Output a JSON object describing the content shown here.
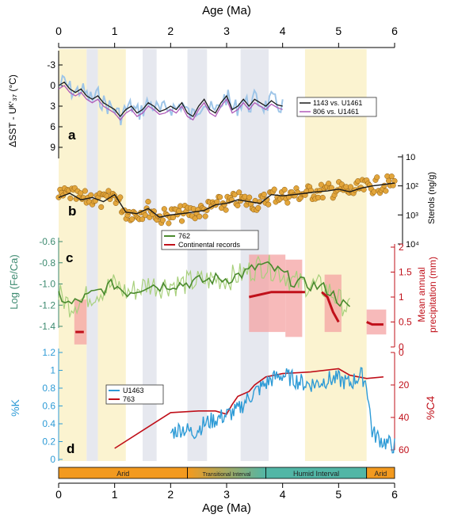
{
  "figure": {
    "top_axis_label": "Age (Ma)",
    "bottom_axis_label": "Age (Ma)",
    "age_ticks": [
      "0",
      "1",
      "2",
      "3",
      "4",
      "5",
      "6"
    ],
    "shading": {
      "yellow": [
        [
          0,
          0.5
        ],
        [
          0.7,
          1.2
        ],
        [
          4.4,
          5.5
        ]
      ],
      "gray": [
        [
          0.5,
          0.7
        ],
        [
          1.5,
          1.75
        ],
        [
          2.3,
          2.65
        ],
        [
          3.25,
          3.75
        ]
      ]
    },
    "colors": {
      "yellow_band": "#fbf3d0",
      "gray_band": "#e6e8ef",
      "arid": "#f39a1f",
      "humid": "#52b6a6",
      "green_dark": "#4a8a2e",
      "green_light": "#a8d07c",
      "red": "#c0101a",
      "pink": "#f4a3a3",
      "blue": "#2e9bd6",
      "orange_dot": "#e3a63b"
    }
  },
  "panel_a": {
    "letter": "a",
    "ylabel": "ΔSST - Uᴷ'₃₇ (°C)",
    "yticks": [
      "-3",
      "0",
      "3",
      "6",
      "9"
    ],
    "legend": [
      "1143 vs. U1461",
      "806 vs. U1461"
    ]
  },
  "panel_b": {
    "letter": "b",
    "ylabel": "Sterols (ng/g)",
    "yticks": [
      "10",
      "10²",
      "10³",
      "10⁴"
    ]
  },
  "panel_c": {
    "letter": "c",
    "ylabel_left": "Log (Fe/Ca)",
    "ylabel_right_1": "Mean annual",
    "ylabel_right_2": "precipitation (mm)",
    "yticks_left": [
      "-0.6",
      "-0.8",
      "-1.0",
      "-1.2",
      "-1.4"
    ],
    "yticks_right": [
      "2",
      "1.5",
      "1",
      "0.5",
      "0"
    ],
    "legend": [
      "762",
      "Continental records"
    ]
  },
  "panel_d": {
    "letter": "d",
    "ylabel_left": "%K",
    "ylabel_right": "%C4",
    "yticks_left": [
      "1.2",
      "1",
      "0.8",
      "0.6",
      "0.4",
      "0.2",
      "0"
    ],
    "yticks_right": [
      "0",
      "20",
      "40",
      "60"
    ],
    "legend": [
      "U1463",
      "763"
    ]
  },
  "climate_bar": {
    "segments": [
      {
        "label": "Arid",
        "from": 0,
        "to": 2.3,
        "kind": "arid"
      },
      {
        "label": "Transitional Interval",
        "from": 2.3,
        "to": 3.7,
        "kind": "transitional"
      },
      {
        "label": "Humid Interval",
        "from": 3.7,
        "to": 5.5,
        "kind": "humid"
      },
      {
        "label": "Arid",
        "from": 5.5,
        "to": 6.0,
        "kind": "arid"
      }
    ]
  },
  "chart_data": {
    "type": "line",
    "x_unit": "Age (Ma)",
    "xlim": [
      0,
      6
    ],
    "series": [
      {
        "name": "1143 vs. U1461",
        "panel": "a",
        "color": "#1a1a1a",
        "x": [
          0,
          0.1,
          0.2,
          0.3,
          0.4,
          0.5,
          0.6,
          0.7,
          0.8,
          0.9,
          1.0,
          1.1,
          1.2,
          1.3,
          1.4,
          1.5,
          1.6,
          1.7,
          1.8,
          1.9,
          2.0,
          2.1,
          2.2,
          2.3,
          2.4,
          2.5,
          2.6,
          2.7,
          2.8,
          2.9,
          3.0,
          3.1,
          3.2,
          3.3,
          3.4,
          3.5,
          3.6,
          3.7,
          3.8,
          3.9,
          4.0
        ],
        "y": [
          0,
          -0.5,
          0.5,
          1.0,
          0.5,
          1.5,
          2.0,
          1.5,
          2.5,
          3.0,
          3.5,
          4.5,
          3.5,
          3.0,
          4.0,
          3.5,
          2.5,
          3.0,
          3.8,
          3.5,
          3.0,
          3.5,
          2.5,
          4.0,
          4.5,
          3.0,
          2.0,
          3.5,
          4.0,
          2.5,
          1.5,
          3.5,
          3.0,
          2.0,
          3.0,
          2.0,
          2.5,
          3.0,
          2.2,
          2.8,
          3.0
        ]
      },
      {
        "name": "806 vs. U1461",
        "panel": "a",
        "color": "#b05ab8",
        "x": [
          0,
          0.1,
          0.2,
          0.3,
          0.4,
          0.5,
          0.6,
          0.7,
          0.8,
          0.9,
          1.0,
          1.1,
          1.2,
          1.3,
          1.4,
          1.5,
          1.6,
          1.7,
          1.8,
          1.9,
          2.0,
          2.1,
          2.2,
          2.3,
          2.4,
          2.5,
          2.6,
          2.7,
          2.8,
          2.9,
          3.0,
          3.1,
          3.2,
          3.3,
          3.4,
          3.5,
          3.6,
          3.7,
          3.8,
          3.9,
          4.0
        ],
        "y": [
          0.5,
          0,
          1.0,
          1.5,
          1.0,
          2.0,
          2.5,
          2.0,
          3.0,
          3.5,
          4.0,
          5.0,
          4.0,
          3.5,
          4.5,
          4.0,
          3.0,
          3.5,
          4.2,
          4.0,
          3.5,
          4.0,
          3.0,
          4.5,
          5.0,
          3.5,
          2.5,
          4.0,
          4.5,
          3.0,
          2.0,
          4.0,
          3.5,
          2.5,
          3.5,
          2.5,
          3.0,
          3.5,
          2.7,
          3.2,
          3.5
        ]
      },
      {
        "name": "Sterols",
        "panel": "b",
        "y_unit": "ng/g",
        "color": "#1a1a1a",
        "x": [
          0,
          0.2,
          0.4,
          0.6,
          0.8,
          1.0,
          1.2,
          1.4,
          1.6,
          1.8,
          2.0,
          2.2,
          2.4,
          2.6,
          2.8,
          3.0,
          3.2,
          3.4,
          3.6,
          3.8,
          4.0,
          4.2,
          4.4,
          4.6,
          4.8,
          5.0,
          5.2,
          5.4,
          5.6,
          5.8,
          6.0
        ],
        "y": [
          250,
          180,
          300,
          250,
          350,
          200,
          800,
          900,
          600,
          1200,
          1000,
          900,
          800,
          700,
          450,
          400,
          300,
          350,
          400,
          200,
          220,
          200,
          180,
          160,
          150,
          130,
          160,
          120,
          100,
          90,
          80
        ]
      },
      {
        "name": "762",
        "panel": "c",
        "color": "#4a8a2e",
        "x": [
          0,
          0.2,
          0.4,
          0.6,
          0.8,
          1.0,
          1.2,
          1.4,
          1.6,
          1.8,
          2.0,
          2.2,
          2.4,
          2.6,
          2.8,
          3.0,
          3.2,
          3.4,
          3.6,
          3.8,
          4.0,
          4.2,
          4.4,
          4.6,
          4.8,
          5.0,
          5.2
        ],
        "y": [
          -1.1,
          -1.2,
          -1.15,
          -1.1,
          -1.05,
          -1.0,
          -1.08,
          -1.05,
          -1.0,
          -1.02,
          -1.0,
          -1.0,
          -0.98,
          -0.97,
          -0.95,
          -0.95,
          -0.92,
          -0.88,
          -0.82,
          -0.85,
          -0.9,
          -0.98,
          -1.0,
          -1.02,
          -1.05,
          -1.15,
          -1.25
        ]
      },
      {
        "name": "Continental records",
        "panel": "c",
        "y_unit": "mm",
        "color": "#c0101a",
        "x": [
          0.3,
          0.45,
          3.4,
          3.6,
          3.8,
          4.0,
          4.2,
          4.4,
          4.7,
          4.8,
          4.9,
          5.0,
          5.5,
          5.6,
          5.8
        ],
        "y": [
          0.3,
          0.3,
          1.0,
          1.05,
          1.1,
          1.1,
          1.1,
          1.1,
          1.1,
          1.0,
          0.7,
          0.5,
          0.5,
          0.45,
          0.45
        ]
      },
      {
        "name": "U1463",
        "panel": "d",
        "y_unit": "%K",
        "color": "#2e9bd6",
        "x": [
          2.0,
          2.2,
          2.4,
          2.6,
          2.8,
          3.0,
          3.2,
          3.4,
          3.6,
          3.8,
          4.0,
          4.2,
          4.4,
          4.6,
          4.8,
          5.0,
          5.2,
          5.4,
          5.5,
          5.6,
          5.8,
          6.0
        ],
        "y": [
          0.3,
          0.35,
          0.3,
          0.4,
          0.45,
          0.5,
          0.55,
          0.7,
          0.8,
          0.9,
          0.95,
          0.9,
          0.85,
          0.85,
          0.9,
          0.9,
          0.85,
          0.95,
          0.85,
          0.3,
          0.2,
          0.15
        ]
      },
      {
        "name": "763",
        "panel": "d",
        "y_unit": "%C4",
        "color": "#c0101a",
        "x": [
          1.0,
          1.5,
          2.0,
          2.5,
          2.8,
          3.0,
          3.1,
          3.2,
          3.4,
          3.5,
          3.7,
          4.0,
          4.5,
          5.0,
          5.2,
          5.5,
          5.8
        ],
        "y": [
          59,
          48,
          37,
          36,
          36,
          38,
          32,
          27,
          24,
          20,
          15,
          13,
          12,
          10,
          14,
          16,
          15
        ]
      }
    ]
  }
}
